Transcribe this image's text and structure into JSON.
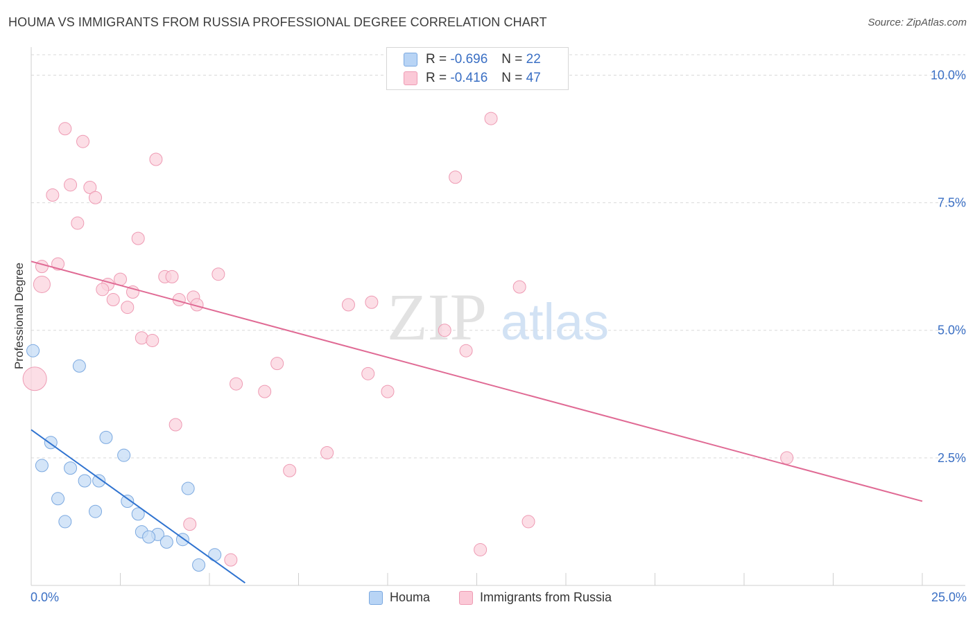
{
  "header": {
    "title": "HOUMA VS IMMIGRANTS FROM RUSSIA PROFESSIONAL DEGREE CORRELATION CHART",
    "source": "Source: ZipAtlas.com"
  },
  "watermark": {
    "zip": "ZIP",
    "atlas": "atlas"
  },
  "stats_legend": [
    {
      "r_label": "R =",
      "r_value": "-0.696",
      "n_label": "N =",
      "n_value": "22",
      "fill": "#b8d4f5",
      "stroke": "#7aa8e0"
    },
    {
      "r_label": "R =",
      "r_value": "-0.416",
      "n_label": "N =",
      "n_value": "47",
      "fill": "#fbc9d7",
      "stroke": "#ee9ab3"
    }
  ],
  "colors": {
    "houma_fill": "#c6dcf6",
    "houma_stroke": "#7aa8e0",
    "houma_line": "#2f73d0",
    "russia_fill": "#fbd3de",
    "russia_stroke": "#ee9ab3",
    "russia_line": "#e06a94",
    "grid": "#d9d9d9",
    "axis_text": "#3a6fc4"
  },
  "chart_data": {
    "type": "scatter",
    "title": "HOUMA VS IMMIGRANTS FROM RUSSIA PROFESSIONAL DEGREE CORRELATION CHART",
    "xlabel": "",
    "ylabel": "Professional Degree",
    "xlim": [
      0,
      25
    ],
    "ylim": [
      0,
      10.4
    ],
    "x_tick_labels": [
      "0.0%",
      "25.0%"
    ],
    "y_ticks": [
      2.5,
      5.0,
      7.5,
      10.0
    ],
    "y_tick_labels": [
      "2.5%",
      "5.0%",
      "7.5%",
      "10.0%"
    ],
    "grid": true,
    "legend_position": "bottom-center",
    "series": [
      {
        "name": "Houma",
        "points": [
          {
            "x": 0.05,
            "y": 4.6
          },
          {
            "x": 1.35,
            "y": 4.3
          },
          {
            "x": 0.55,
            "y": 2.8
          },
          {
            "x": 2.1,
            "y": 2.9
          },
          {
            "x": 0.3,
            "y": 2.35
          },
          {
            "x": 1.1,
            "y": 2.3
          },
          {
            "x": 2.6,
            "y": 2.55
          },
          {
            "x": 1.5,
            "y": 2.05
          },
          {
            "x": 1.9,
            "y": 2.05
          },
          {
            "x": 4.4,
            "y": 1.9
          },
          {
            "x": 0.75,
            "y": 1.7
          },
          {
            "x": 2.7,
            "y": 1.65
          },
          {
            "x": 1.8,
            "y": 1.45
          },
          {
            "x": 3.0,
            "y": 1.4
          },
          {
            "x": 0.95,
            "y": 1.25
          },
          {
            "x": 3.1,
            "y": 1.05
          },
          {
            "x": 3.55,
            "y": 1.0
          },
          {
            "x": 3.3,
            "y": 0.95
          },
          {
            "x": 4.25,
            "y": 0.9
          },
          {
            "x": 3.8,
            "y": 0.85
          },
          {
            "x": 5.15,
            "y": 0.6
          },
          {
            "x": 4.7,
            "y": 0.4
          }
        ],
        "trend": {
          "x0": 0.0,
          "y0": 3.05,
          "x1": 6.0,
          "y1": 0.05
        }
      },
      {
        "name": "Immigrants from Russia",
        "points": [
          {
            "x": 0.95,
            "y": 8.95
          },
          {
            "x": 1.45,
            "y": 8.7
          },
          {
            "x": 3.5,
            "y": 8.35
          },
          {
            "x": 12.9,
            "y": 9.15
          },
          {
            "x": 11.9,
            "y": 8.0
          },
          {
            "x": 1.1,
            "y": 7.85
          },
          {
            "x": 1.65,
            "y": 7.8
          },
          {
            "x": 0.6,
            "y": 7.65
          },
          {
            "x": 1.8,
            "y": 7.6
          },
          {
            "x": 1.3,
            "y": 7.1
          },
          {
            "x": 3.0,
            "y": 6.8
          },
          {
            "x": 0.3,
            "y": 6.25
          },
          {
            "x": 0.75,
            "y": 6.3
          },
          {
            "x": 0.3,
            "y": 5.9
          },
          {
            "x": 2.5,
            "y": 6.0
          },
          {
            "x": 3.75,
            "y": 6.05
          },
          {
            "x": 3.95,
            "y": 6.05
          },
          {
            "x": 5.25,
            "y": 6.1
          },
          {
            "x": 2.15,
            "y": 5.9
          },
          {
            "x": 2.0,
            "y": 5.8
          },
          {
            "x": 2.85,
            "y": 5.75
          },
          {
            "x": 2.3,
            "y": 5.6
          },
          {
            "x": 4.15,
            "y": 5.6
          },
          {
            "x": 4.55,
            "y": 5.65
          },
          {
            "x": 4.65,
            "y": 5.5
          },
          {
            "x": 2.7,
            "y": 5.45
          },
          {
            "x": 8.9,
            "y": 5.5
          },
          {
            "x": 9.55,
            "y": 5.55
          },
          {
            "x": 13.7,
            "y": 5.85
          },
          {
            "x": 11.6,
            "y": 5.0
          },
          {
            "x": 3.1,
            "y": 4.85
          },
          {
            "x": 3.4,
            "y": 4.8
          },
          {
            "x": 12.2,
            "y": 4.6
          },
          {
            "x": 6.9,
            "y": 4.35
          },
          {
            "x": 0.1,
            "y": 4.05
          },
          {
            "x": 9.45,
            "y": 4.15
          },
          {
            "x": 5.75,
            "y": 3.95
          },
          {
            "x": 6.55,
            "y": 3.8
          },
          {
            "x": 10.0,
            "y": 3.8
          },
          {
            "x": 4.05,
            "y": 3.15
          },
          {
            "x": 8.3,
            "y": 2.6
          },
          {
            "x": 7.25,
            "y": 2.25
          },
          {
            "x": 21.2,
            "y": 2.5
          },
          {
            "x": 4.45,
            "y": 1.2
          },
          {
            "x": 13.95,
            "y": 1.25
          },
          {
            "x": 12.6,
            "y": 0.7
          },
          {
            "x": 5.6,
            "y": 0.5
          }
        ],
        "trend": {
          "x0": 0.0,
          "y0": 6.35,
          "x1": 25.0,
          "y1": 1.65
        }
      }
    ]
  }
}
